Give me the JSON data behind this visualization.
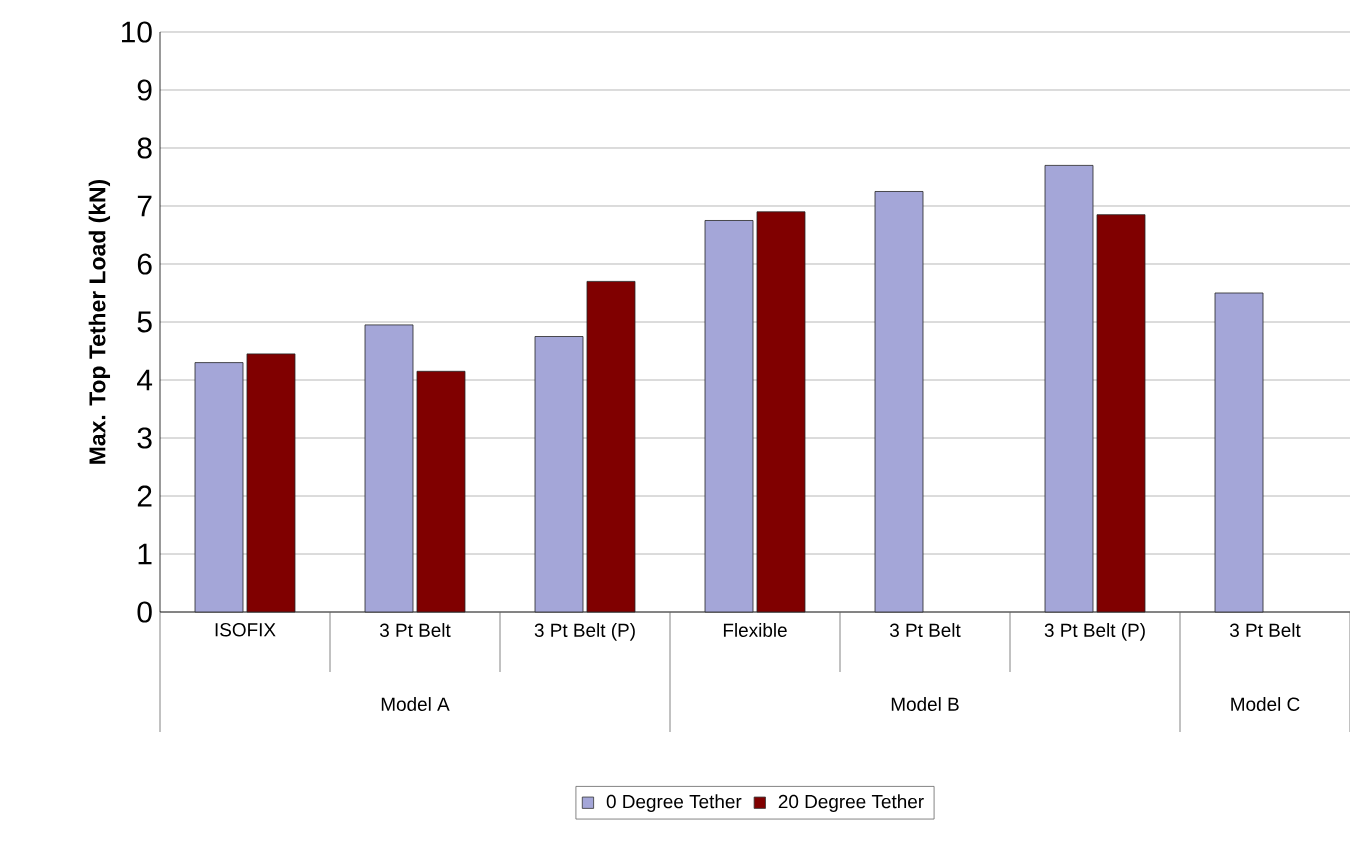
{
  "chart_data": {
    "type": "bar",
    "ylabel": "Max. Top Tether Load (kN)",
    "categories": [
      "ISOFIX",
      "3 Pt Belt",
      "3 Pt Belt (P)",
      "Flexible",
      "3 Pt Belt",
      "3 Pt Belt (P)",
      "3 Pt Belt"
    ],
    "series": [
      {
        "name": "0 Degree Tether",
        "color": "#a4a6d8",
        "values": [
          4.3,
          4.95,
          4.75,
          6.75,
          7.25,
          7.7,
          5.5
        ]
      },
      {
        "name": "20 Degree Tether",
        "color": "#800000",
        "values": [
          4.45,
          4.15,
          5.7,
          6.9,
          null,
          6.85,
          null
        ]
      }
    ],
    "annotations": [
      "Model A",
      "Model B",
      "Model C"
    ],
    "ylim": [
      0,
      10
    ],
    "yticks": [
      0,
      1,
      2,
      3,
      4,
      5,
      6,
      7,
      8,
      9,
      10
    ],
    "grid": "y",
    "legend": "bottom"
  }
}
